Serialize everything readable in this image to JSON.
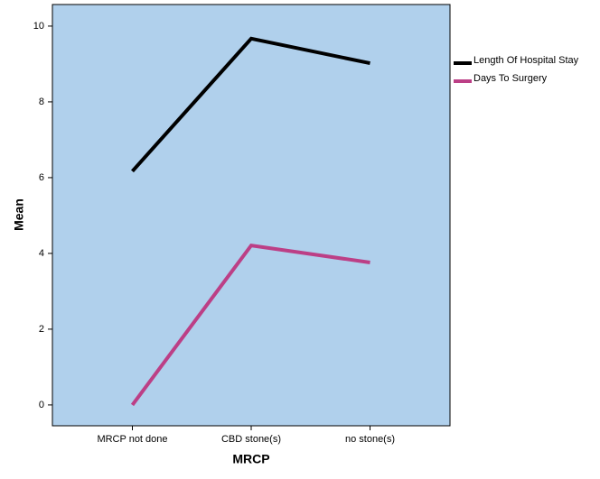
{
  "chart_data": {
    "type": "line",
    "x_label": "MRCP",
    "y_label": "Mean",
    "categories": [
      "MRCP not done",
      "CBD stone(s)",
      "no stone(s)"
    ],
    "series": [
      {
        "name": "Length Of Hospital Stay",
        "color": "#000000",
        "values": [
          6.17,
          9.67,
          9.02
        ]
      },
      {
        "name": "Days To Surgery",
        "color": "#bc3f86",
        "values": [
          0,
          4.21,
          3.76
        ]
      }
    ],
    "ylim": [
      -0.55,
      10.57
    ],
    "yticks": [
      0,
      2,
      4,
      6,
      8,
      10
    ],
    "legend": "right",
    "plot_background": "#b0d0ec"
  }
}
